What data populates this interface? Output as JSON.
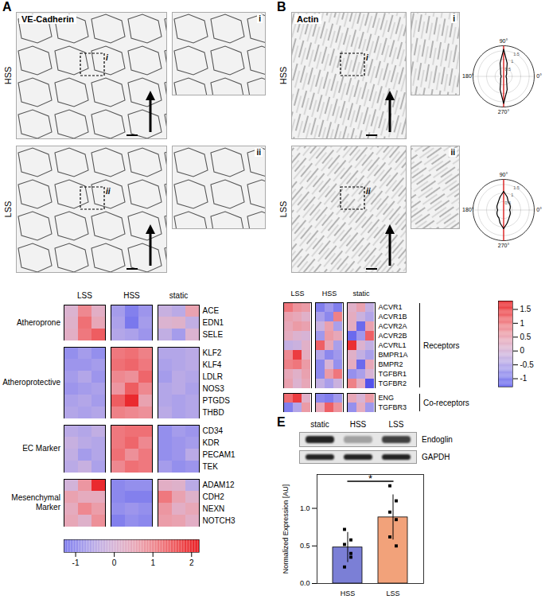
{
  "panels": {
    "A": {
      "label": "A",
      "title": "VE-Cadherin",
      "rows": [
        "HSS",
        "LSS"
      ],
      "insets": [
        "i",
        "ii"
      ]
    },
    "B": {
      "label": "B",
      "title": "Actin",
      "rows": [
        "HSS",
        "LSS"
      ],
      "insets": [
        "i",
        "ii"
      ]
    },
    "E": {
      "label": "E",
      "lanes": [
        "static",
        "HSS",
        "LSS"
      ],
      "bands": [
        {
          "name": "Endoglin",
          "intensity": [
            1.0,
            0.35,
            0.85
          ]
        },
        {
          "name": "GAPDH",
          "intensity": [
            1.0,
            1.0,
            1.0
          ]
        }
      ]
    }
  },
  "chart_data": [
    {
      "type": "polar",
      "panel": "B",
      "angles": [
        0,
        15,
        30,
        45,
        60,
        75,
        90,
        105,
        120,
        135,
        150,
        165,
        180,
        195,
        210,
        225,
        240,
        255,
        270,
        285,
        300,
        315,
        330,
        345
      ],
      "series": [
        {
          "name": "HSS",
          "values": [
            0.15,
            0.15,
            0.2,
            0.25,
            0.35,
            0.8,
            1.6,
            0.8,
            0.35,
            0.25,
            0.2,
            0.15,
            0.15,
            0.15,
            0.2,
            0.25,
            0.35,
            0.8,
            1.6,
            0.8,
            0.35,
            0.25,
            0.2,
            0.15
          ]
        },
        {
          "name": "LSS",
          "values": [
            0.35,
            0.4,
            0.45,
            0.5,
            0.55,
            0.8,
            1.1,
            0.8,
            0.6,
            0.5,
            0.45,
            0.4,
            0.35,
            0.4,
            0.45,
            0.5,
            0.55,
            0.8,
            1.1,
            0.8,
            0.6,
            0.5,
            0.45,
            0.4
          ]
        }
      ],
      "rlim": [
        0,
        1.8
      ],
      "rticks": [
        0.5,
        1,
        1.5
      ],
      "angle_ticks": [
        {
          "value": 0,
          "label": "0°"
        },
        {
          "value": 90,
          "label": "90°"
        },
        {
          "value": 180,
          "label": "180°"
        },
        {
          "value": 270,
          "label": "270°"
        }
      ]
    },
    {
      "type": "heatmap",
      "panel": "C",
      "columns": [
        "LSS",
        "HSS",
        "static"
      ],
      "replicates": 3,
      "groups": [
        {
          "name": "Atheroprone",
          "rows": [
            {
              "gene": "ACE",
              "values": [
                0.1,
                1.0,
                0.3,
                -0.8,
                -1.2,
                -0.9,
                -0.3,
                -0.5,
                0.6
              ]
            },
            {
              "gene": "EDN1",
              "values": [
                0.2,
                1.3,
                0.5,
                -0.7,
                -1.3,
                -0.8,
                0.1,
                0.2,
                -0.4
              ]
            },
            {
              "gene": "SELE",
              "values": [
                0.3,
                1.2,
                1.5,
                -0.6,
                -0.7,
                -0.9,
                -0.4,
                -0.8,
                0.1
              ]
            }
          ]
        },
        {
          "name": "Atheroprotective",
          "rows": [
            {
              "gene": "KLF2",
              "values": [
                -1.0,
                -0.8,
                -1.0,
                1.2,
                1.3,
                1.1,
                -0.6,
                -0.6,
                -0.5
              ]
            },
            {
              "gene": "KLF4",
              "values": [
                -0.9,
                -0.9,
                -0.8,
                1.3,
                1.4,
                1.2,
                -0.7,
                -0.6,
                -0.5
              ]
            },
            {
              "gene": "LDLR",
              "values": [
                -0.8,
                -0.6,
                -0.9,
                1.0,
                0.9,
                1.4,
                -0.8,
                -0.5,
                -0.6
              ]
            },
            {
              "gene": "NOS3",
              "values": [
                -0.9,
                -0.8,
                -0.7,
                0.8,
                1.5,
                1.0,
                -0.6,
                -0.5,
                -0.7
              ]
            },
            {
              "gene": "PTGDS",
              "values": [
                -0.7,
                -0.6,
                -0.8,
                1.5,
                2.0,
                0.6,
                -0.6,
                -0.7,
                -0.6
              ]
            },
            {
              "gene": "THBD",
              "values": [
                -0.6,
                -0.7,
                -0.6,
                1.1,
                1.0,
                0.9,
                -0.5,
                -0.7,
                -0.6
              ]
            }
          ]
        },
        {
          "name": "EC Marker",
          "rows": [
            {
              "gene": "CD34",
              "values": [
                -0.5,
                -0.6,
                -0.4,
                1.2,
                1.3,
                1.3,
                -1.0,
                -0.8,
                -0.9
              ]
            },
            {
              "gene": "KDR",
              "values": [
                -0.3,
                -0.5,
                -0.6,
                1.2,
                1.4,
                1.0,
                -1.0,
                -0.9,
                -0.8
              ]
            },
            {
              "gene": "PECAM1",
              "values": [
                -0.4,
                -0.8,
                -0.6,
                1.3,
                0.9,
                1.2,
                -1.0,
                -0.9,
                -0.5
              ]
            },
            {
              "gene": "TEK",
              "values": [
                -0.5,
                -0.3,
                -0.7,
                1.0,
                1.3,
                1.2,
                -0.8,
                -1.0,
                -0.9
              ]
            }
          ]
        },
        {
          "name": "Mesenchymal Marker",
          "rows": [
            {
              "gene": "ADAM12",
              "values": [
                -0.1,
                0.8,
                2.0,
                -1.1,
                -1.0,
                -1.0,
                0.3,
                0.2,
                -0.5
              ]
            },
            {
              "gene": "CDH2",
              "values": [
                0.6,
                0.4,
                0.4,
                -1.1,
                -1.2,
                -1.2,
                1.2,
                0.6,
                0.2
              ]
            },
            {
              "gene": "NEXN",
              "values": [
                0.4,
                1.0,
                0.7,
                -1.0,
                -0.9,
                -1.0,
                0.8,
                0.3,
                0.5
              ]
            },
            {
              "gene": "NOTCH3",
              "values": [
                0.5,
                0.2,
                0.9,
                -1.2,
                -1.0,
                -1.1,
                0.7,
                0.6,
                0.3
              ]
            }
          ]
        }
      ],
      "clim": [
        -1.3,
        2.2
      ],
      "cticks": [
        -1,
        0,
        1,
        2
      ]
    },
    {
      "type": "heatmap",
      "panel": "D",
      "columns": [
        "LSS",
        "HSS",
        "static"
      ],
      "replicates": 3,
      "groups": [
        {
          "name": "Receptors",
          "rows": [
            {
              "gene": "ACVR1",
              "values": [
                1.0,
                0.7,
                0.6,
                -1.0,
                -0.7,
                -1.0,
                0.2,
                0.5,
                -0.3
              ]
            },
            {
              "gene": "ACVR1B",
              "values": [
                0.5,
                0.4,
                0.2,
                -0.6,
                -0.9,
                0.9,
                0.3,
                -0.2,
                -0.5
              ]
            },
            {
              "gene": "ACVR2A",
              "values": [
                0.4,
                0.6,
                0.5,
                -0.2,
                0.5,
                -0.6,
                0.3,
                -1.2,
                0.5
              ]
            },
            {
              "gene": "ACVR2B",
              "values": [
                0.3,
                0.1,
                0.0,
                -0.7,
                0.6,
                0.4,
                -1.2,
                -0.7,
                1.2
              ]
            },
            {
              "gene": "ACVRL1",
              "values": [
                -0.3,
                -0.2,
                0.2,
                1.2,
                0.4,
                -0.6,
                1.6,
                0.1,
                -0.3
              ]
            },
            {
              "gene": "BMPR1A",
              "values": [
                0.8,
                1.5,
                0.3,
                -0.5,
                -0.9,
                -0.7,
                0.2,
                -0.3,
                -0.6
              ]
            },
            {
              "gene": "BMPR2",
              "values": [
                0.9,
                1.0,
                0.6,
                -0.9,
                0.0,
                -0.8,
                0.3,
                -1.2,
                0.4
              ]
            },
            {
              "gene": "TGFBR1",
              "values": [
                0.4,
                0.2,
                0.5,
                -0.9,
                0.6,
                1.0,
                -0.8,
                -0.6,
                0.0
              ]
            },
            {
              "gene": "TGFBR2",
              "values": [
                0.5,
                0.1,
                0.4,
                -0.3,
                -0.6,
                -0.2,
                0.9,
                0.3,
                -1.4
              ]
            }
          ]
        },
        {
          "name": "Co-receptors",
          "rows": [
            {
              "gene": "ENG",
              "values": [
                1.1,
                1.5,
                0.2,
                -0.9,
                -1.0,
                -0.7,
                0.4,
                0.0,
                0.6
              ]
            },
            {
              "gene": "TGFBR3",
              "values": [
                -1.0,
                -0.5,
                0.6,
                0.4,
                1.2,
                0.7,
                -0.8,
                0.3,
                -0.7
              ]
            }
          ]
        }
      ],
      "clim": [
        -1.3,
        1.8
      ],
      "cticks": [
        -1,
        -0.5,
        0,
        0.5,
        1,
        1.5
      ]
    },
    {
      "type": "bar",
      "panel": "E",
      "categories": [
        "HSS",
        "LSS"
      ],
      "values": [
        0.48,
        0.88
      ],
      "errors": [
        0.2,
        0.3
      ],
      "points": [
        [
          0.72,
          0.58,
          0.52,
          0.4,
          0.22,
          0.35
        ],
        [
          1.3,
          1.1,
          0.95,
          0.85,
          0.62,
          0.5
        ]
      ],
      "colors": [
        "#7b7fd6",
        "#f2a27a"
      ],
      "ylabel": "Normalized Expression [AU]",
      "ylim": [
        0,
        1.45
      ],
      "yticks": [
        {
          "value": 0,
          "label": "0.0"
        },
        {
          "value": 0.5,
          "label": "0.5"
        },
        {
          "value": 1,
          "label": "1.0"
        }
      ],
      "significance": {
        "label": "*",
        "between": [
          "HSS",
          "LSS"
        ],
        "y": 1.36
      }
    }
  ]
}
